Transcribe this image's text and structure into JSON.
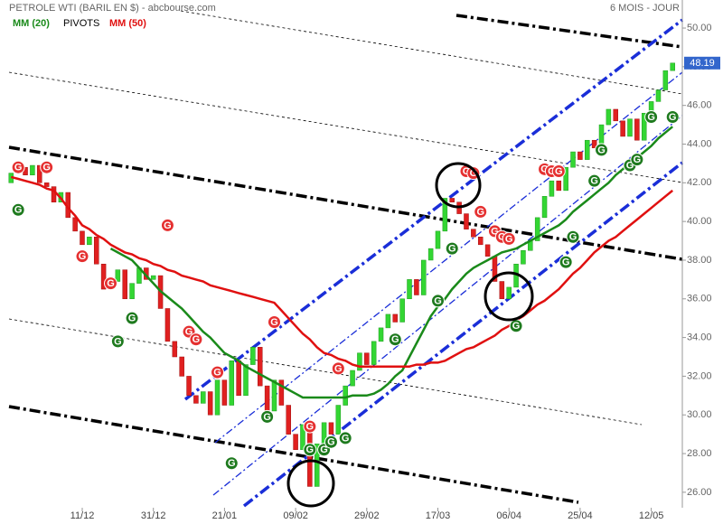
{
  "chart_data": {
    "type": "candlestick",
    "title": "PETROLE WTI (BARIL EN $) - abcbourse.com",
    "subtitle": "6 MOIS - JOUR",
    "pivots": {
      "name": "PIVOTS"
    },
    "categories": [
      null,
      null,
      null,
      null,
      null,
      null,
      null,
      null,
      null,
      null,
      "11/12",
      null,
      null,
      null,
      null,
      null,
      null,
      null,
      null,
      null,
      "31/12",
      null,
      null,
      null,
      null,
      null,
      null,
      null,
      null,
      null,
      "21/01",
      null,
      null,
      null,
      null,
      null,
      null,
      null,
      null,
      null,
      "09/02",
      null,
      null,
      null,
      null,
      null,
      null,
      null,
      null,
      null,
      "29/02",
      null,
      null,
      null,
      null,
      null,
      null,
      null,
      null,
      null,
      "17/03",
      null,
      null,
      null,
      null,
      null,
      null,
      null,
      null,
      null,
      "06/04",
      null,
      null,
      null,
      null,
      null,
      null,
      null,
      null,
      null,
      "25/04",
      null,
      null,
      null,
      null,
      null,
      null,
      null,
      null,
      null,
      "12/05",
      null,
      null,
      null
    ],
    "open": [
      42.0,
      42.5,
      42.8,
      42.4,
      42.9,
      42.0,
      41.8,
      41.0,
      41.5,
      40.2,
      39.5,
      38.8,
      39.2,
      37.8,
      36.5,
      36.9,
      37.5,
      36.0,
      36.8,
      37.6,
      37.0,
      37.2,
      35.5,
      33.8,
      33.0,
      32.0,
      31.0,
      30.6,
      31.2,
      30.0,
      31.8,
      30.5,
      32.8,
      31.0,
      32.6,
      33.5,
      31.5,
      30.2,
      31.8,
      30.5,
      29.0,
      28.2,
      29.5,
      26.3,
      28.5,
      29.6,
      29.0,
      30.5,
      31.5,
      32.3,
      33.2,
      32.6,
      33.8,
      34.5,
      35.2,
      34.8,
      36.0,
      37.0,
      36.2,
      38.0,
      38.6,
      39.5,
      41.2,
      41.0,
      40.4,
      39.6,
      39.2,
      38.8,
      38.2,
      36.9,
      36.0,
      36.6,
      37.8,
      38.5,
      39.0,
      40.2,
      41.3,
      42.1,
      41.6,
      42.8,
      43.6,
      43.2,
      44.2,
      43.8,
      45.0,
      45.8,
      45.2,
      44.4,
      45.3,
      44.2,
      45.6,
      46.2,
      46.8,
      47.8
    ],
    "close": [
      42.5,
      42.8,
      42.4,
      42.9,
      42.0,
      41.8,
      41.0,
      41.5,
      40.2,
      39.5,
      38.8,
      39.2,
      37.8,
      36.5,
      36.9,
      37.5,
      36.0,
      36.8,
      37.6,
      37.0,
      37.2,
      35.5,
      33.8,
      33.0,
      32.0,
      31.0,
      30.6,
      31.2,
      30.0,
      31.8,
      30.5,
      32.8,
      31.0,
      32.6,
      33.5,
      31.5,
      30.2,
      31.8,
      30.5,
      29.0,
      28.2,
      29.5,
      26.3,
      28.5,
      29.6,
      29.0,
      30.5,
      31.5,
      32.3,
      33.2,
      32.6,
      33.8,
      34.5,
      35.2,
      34.8,
      36.0,
      37.0,
      36.2,
      38.0,
      38.6,
      39.5,
      41.2,
      41.0,
      40.4,
      39.6,
      39.2,
      38.8,
      38.2,
      36.9,
      36.0,
      36.6,
      37.8,
      38.5,
      39.0,
      40.2,
      41.3,
      42.1,
      41.6,
      42.8,
      43.6,
      43.2,
      44.2,
      43.8,
      45.0,
      45.8,
      45.2,
      44.4,
      45.3,
      44.2,
      45.6,
      46.2,
      46.8,
      47.8,
      48.19
    ],
    "up_color": "#33d633",
    "down_color": "#e02020",
    "series": [
      {
        "name": "MM (20)",
        "color": "#1a8a1a",
        "values": [
          null,
          null,
          null,
          null,
          null,
          null,
          null,
          null,
          null,
          null,
          null,
          null,
          null,
          null,
          38.6,
          38.4,
          38.2,
          38.0,
          37.6,
          37.2,
          36.8,
          36.4,
          36.1,
          35.8,
          35.5,
          35.1,
          34.7,
          34.3,
          34.0,
          33.6,
          33.2,
          33.0,
          32.8,
          32.5,
          32.3,
          32.1,
          31.9,
          31.7,
          31.5,
          31.3,
          31.1,
          30.9,
          30.9,
          30.9,
          30.9,
          30.9,
          30.9,
          30.9,
          31.0,
          31.0,
          31.0,
          31.1,
          31.3,
          31.6,
          32.0,
          32.3,
          33.0,
          33.7,
          34.4,
          35.1,
          35.6,
          36.0,
          36.5,
          36.9,
          37.3,
          37.6,
          37.8,
          38.0,
          38.2,
          38.4,
          38.5,
          38.6,
          38.8,
          39.0,
          39.2,
          39.4,
          39.6,
          39.8,
          40.1,
          40.5,
          40.8,
          41.1,
          41.4,
          41.7,
          42.0,
          42.4,
          42.7,
          43.0,
          43.3,
          43.6,
          43.9,
          44.3,
          44.6,
          44.9
        ]
      },
      {
        "name": "MM (50)",
        "color": "#e01010",
        "values": [
          42.3,
          42.2,
          42.1,
          42.0,
          41.9,
          41.7,
          41.6,
          41.2,
          40.7,
          40.3,
          39.8,
          39.6,
          39.3,
          39.1,
          38.8,
          38.6,
          38.4,
          38.3,
          38.1,
          38.0,
          37.8,
          37.7,
          37.5,
          37.4,
          37.2,
          37.1,
          37.0,
          36.9,
          36.7,
          36.6,
          36.5,
          36.4,
          36.3,
          36.2,
          36.1,
          36.0,
          35.9,
          35.8,
          35.4,
          35.0,
          34.6,
          34.2,
          33.9,
          33.5,
          33.2,
          33.1,
          32.9,
          32.8,
          32.6,
          32.5,
          32.5,
          32.5,
          32.5,
          32.5,
          32.5,
          32.5,
          32.5,
          32.6,
          32.6,
          32.7,
          32.7,
          32.8,
          33.0,
          33.2,
          33.4,
          33.5,
          33.7,
          33.9,
          34.1,
          34.4,
          34.6,
          34.9,
          35.1,
          35.4,
          35.7,
          35.9,
          36.2,
          36.5,
          36.9,
          37.3,
          37.6,
          38.0,
          38.4,
          38.7,
          39.0,
          39.2,
          39.5,
          39.8,
          40.1,
          40.4,
          40.7,
          41.0,
          41.3,
          41.6
        ]
      }
    ],
    "marker_label": "G",
    "markers": [
      {
        "index": 1,
        "value": 40.6,
        "color": "#1e7a1e"
      },
      {
        "index": 15,
        "value": 33.8,
        "color": "#1e7a1e"
      },
      {
        "index": 17,
        "value": 35.0,
        "color": "#1e7a1e"
      },
      {
        "index": 31,
        "value": 27.5,
        "color": "#1e7a1e"
      },
      {
        "index": 36,
        "value": 29.9,
        "color": "#1e7a1e"
      },
      {
        "index": 42,
        "value": 28.2,
        "color": "#1e7a1e"
      },
      {
        "index": 44,
        "value": 28.2,
        "color": "#1e7a1e"
      },
      {
        "index": 45,
        "value": 28.6,
        "color": "#1e7a1e"
      },
      {
        "index": 47,
        "value": 28.8,
        "color": "#1e7a1e"
      },
      {
        "index": 54,
        "value": 33.9,
        "color": "#1e7a1e"
      },
      {
        "index": 60,
        "value": 35.9,
        "color": "#1e7a1e"
      },
      {
        "index": 62,
        "value": 38.6,
        "color": "#1e7a1e"
      },
      {
        "index": 71,
        "value": 34.6,
        "color": "#1e7a1e"
      },
      {
        "index": 78,
        "value": 37.9,
        "color": "#1e7a1e"
      },
      {
        "index": 79,
        "value": 39.2,
        "color": "#1e7a1e"
      },
      {
        "index": 82,
        "value": 42.1,
        "color": "#1e7a1e"
      },
      {
        "index": 83,
        "value": 43.7,
        "color": "#1e7a1e"
      },
      {
        "index": 87,
        "value": 42.9,
        "color": "#1e7a1e"
      },
      {
        "index": 88,
        "value": 43.2,
        "color": "#1e7a1e"
      },
      {
        "index": 90,
        "value": 45.4,
        "color": "#1e7a1e"
      },
      {
        "index": 93,
        "value": 45.4,
        "color": "#1e7a1e"
      },
      {
        "index": 1,
        "value": 42.8,
        "color": "#e53030"
      },
      {
        "index": 5,
        "value": 42.8,
        "color": "#e53030"
      },
      {
        "index": 10,
        "value": 38.2,
        "color": "#e53030"
      },
      {
        "index": 14,
        "value": 36.8,
        "color": "#e53030"
      },
      {
        "index": 22,
        "value": 39.8,
        "color": "#e53030"
      },
      {
        "index": 25,
        "value": 34.3,
        "color": "#e53030"
      },
      {
        "index": 26,
        "value": 33.9,
        "color": "#e53030"
      },
      {
        "index": 29,
        "value": 32.2,
        "color": "#e53030"
      },
      {
        "index": 37,
        "value": 34.8,
        "color": "#e53030"
      },
      {
        "index": 42,
        "value": 29.4,
        "color": "#e53030"
      },
      {
        "index": 46,
        "value": 32.4,
        "color": "#e53030"
      },
      {
        "index": 64,
        "value": 42.6,
        "color": "#e53030"
      },
      {
        "index": 65,
        "value": 42.5,
        "color": "#e53030"
      },
      {
        "index": 66,
        "value": 40.5,
        "color": "#e53030"
      },
      {
        "index": 68,
        "value": 39.5,
        "color": "#e53030"
      },
      {
        "index": 69,
        "value": 39.2,
        "color": "#e53030"
      },
      {
        "index": 70,
        "value": 39.1,
        "color": "#e53030"
      },
      {
        "index": 75,
        "value": 42.7,
        "color": "#e53030"
      },
      {
        "index": 76,
        "value": 42.6,
        "color": "#e53030"
      },
      {
        "index": 77,
        "value": 42.6,
        "color": "#e53030"
      }
    ],
    "last": 48.19,
    "last_color": "#3366cc",
    "ylim": [
      25.2,
      51.45
    ],
    "yticks": [
      {
        "value": 26,
        "label": "26.00"
      },
      {
        "value": 28,
        "label": "28.00"
      },
      {
        "value": 30,
        "label": "30.00"
      },
      {
        "value": 32,
        "label": "32.00"
      },
      {
        "value": 34,
        "label": "34.00"
      },
      {
        "value": 36,
        "label": "36.00"
      },
      {
        "value": 38,
        "label": "38.00"
      },
      {
        "value": 40,
        "label": "40.00"
      },
      {
        "value": 42,
        "label": "42.00"
      },
      {
        "value": 44,
        "label": "44.00"
      },
      {
        "value": 46,
        "label": "46.00"
      },
      {
        "value": 48,
        "label": "48.00"
      },
      {
        "value": 50,
        "label": "50.00"
      }
    ],
    "grid": false
  }
}
